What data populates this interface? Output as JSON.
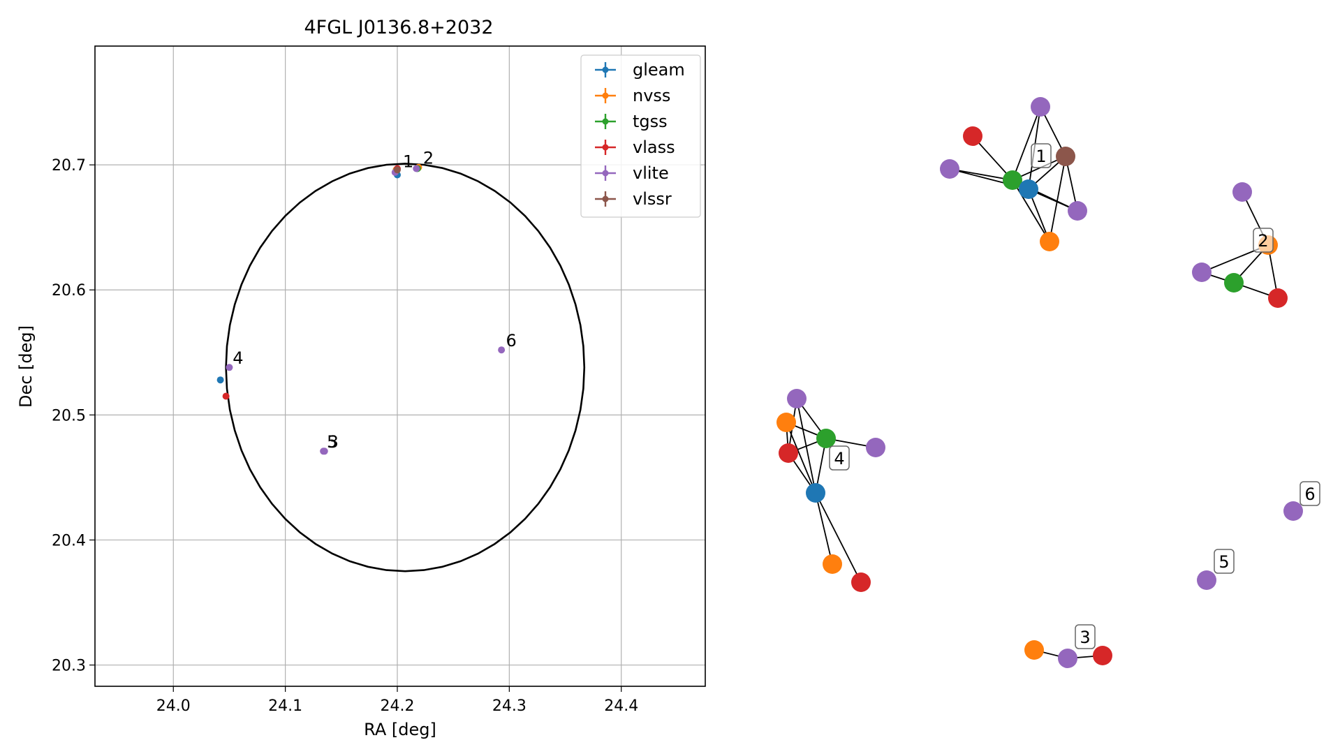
{
  "chart_data": [
    {
      "type": "scatter",
      "title": "4FGL J0136.8+2032",
      "xlabel": "RA [deg]",
      "ylabel": "Dec [deg]",
      "xlim": [
        23.93,
        24.475
      ],
      "ylim": [
        20.283,
        20.795
      ],
      "x_ticks": [
        {
          "v": 24.0,
          "label": "24.0"
        },
        {
          "v": 24.1,
          "label": "24.1"
        },
        {
          "v": 24.2,
          "label": "24.2"
        },
        {
          "v": 24.3,
          "label": "24.3"
        },
        {
          "v": 24.4,
          "label": "24.4"
        }
      ],
      "y_ticks": [
        {
          "v": 20.3,
          "label": "20.3"
        },
        {
          "v": 20.4,
          "label": "20.4"
        },
        {
          "v": 20.5,
          "label": "20.5"
        },
        {
          "v": 20.6,
          "label": "20.6"
        },
        {
          "v": 20.7,
          "label": "20.7"
        }
      ],
      "grid": true,
      "legend_position": "top-right",
      "ellipse": {
        "center_ra": 24.207,
        "center_dec": 20.538,
        "semi_ra": 0.16,
        "semi_dec": 0.163
      },
      "series": [
        {
          "name": "gleam",
          "color": "#1f77b4",
          "points": [
            {
              "x": 24.2,
              "y": 20.692
            },
            {
              "x": 24.042,
              "y": 20.528
            }
          ]
        },
        {
          "name": "nvss",
          "color": "#ff7f0e",
          "points": [
            {
              "x": 24.199,
              "y": 20.696
            },
            {
              "x": 24.219,
              "y": 20.698
            }
          ]
        },
        {
          "name": "tgss",
          "color": "#2ca02c",
          "points": [
            {
              "x": 24.199,
              "y": 20.695
            },
            {
              "x": 24.218,
              "y": 20.697
            }
          ]
        },
        {
          "name": "vlass",
          "color": "#d62728",
          "points": [
            {
              "x": 24.2,
              "y": 20.697
            },
            {
              "x": 24.047,
              "y": 20.515
            }
          ]
        },
        {
          "name": "vlite",
          "color": "#9467bd",
          "points": [
            {
              "x": 24.198,
              "y": 20.694
            },
            {
              "x": 24.217,
              "y": 20.697
            },
            {
              "x": 24.05,
              "y": 20.538
            },
            {
              "x": 24.135,
              "y": 20.471
            },
            {
              "x": 24.134,
              "y": 20.471
            },
            {
              "x": 24.293,
              "y": 20.552
            }
          ]
        },
        {
          "name": "vlssr",
          "color": "#8c564b",
          "points": [
            {
              "x": 24.2,
              "y": 20.696
            }
          ]
        }
      ],
      "annotations": [
        {
          "text": "1",
          "x": 24.205,
          "y": 20.698
        },
        {
          "text": "2",
          "x": 24.223,
          "y": 20.701
        },
        {
          "text": "3",
          "x": 24.138,
          "y": 20.474
        },
        {
          "text": "5",
          "x": 24.137,
          "y": 20.474
        },
        {
          "text": "4",
          "x": 24.053,
          "y": 20.541
        },
        {
          "text": "6",
          "x": 24.297,
          "y": 20.555
        }
      ]
    },
    {
      "type": "network",
      "series_colors": {
        "gleam": "#1f77b4",
        "nvss": "#ff7f0e",
        "tgss": "#2ca02c",
        "vlass": "#d62728",
        "vlite": "#9467bd",
        "vlssr": "#8c564b"
      },
      "clusters": [
        {
          "label": "1",
          "nodes": [
            "vlite",
            "vlass",
            "vlite",
            "tgss",
            "gleam",
            "vlssr",
            "vlite",
            "nvss"
          ]
        },
        {
          "label": "2",
          "nodes": [
            "vlite",
            "nvss",
            "vlite",
            "tgss",
            "vlass"
          ]
        },
        {
          "label": "3",
          "nodes": [
            "nvss",
            "vlite",
            "vlass"
          ]
        },
        {
          "label": "4",
          "nodes": [
            "vlite",
            "nvss",
            "tgss",
            "vlass",
            "vlite",
            "gleam",
            "nvss",
            "vlass"
          ]
        },
        {
          "label": "5",
          "nodes": [
            "vlite"
          ]
        },
        {
          "label": "6",
          "nodes": [
            "vlite"
          ]
        }
      ]
    }
  ]
}
